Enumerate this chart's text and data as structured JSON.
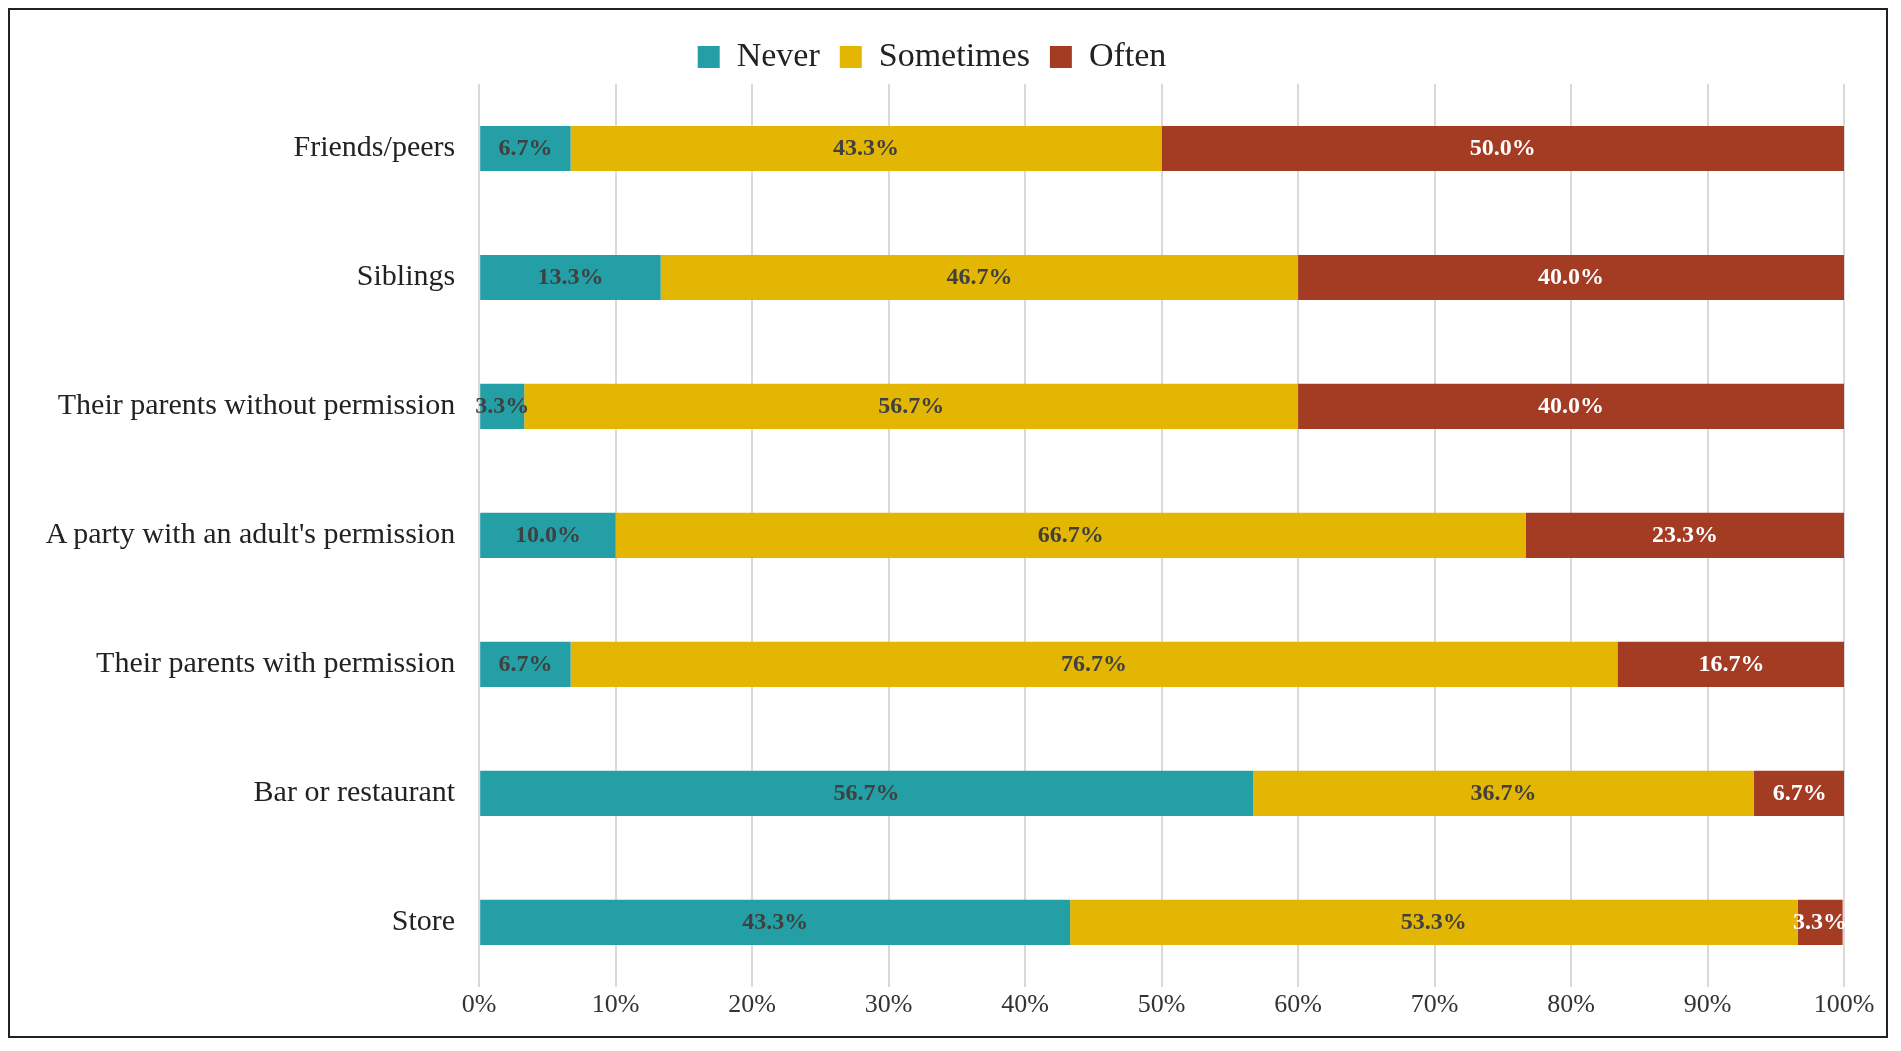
{
  "chart_data": {
    "type": "bar",
    "orientation": "horizontal",
    "stacked": true,
    "legend": "top",
    "grid": "x",
    "categories": [
      "Friends/peers",
      "Siblings",
      "Their parents without permission",
      "A party with an adult's permission",
      "Their parents with permission",
      "Bar or restaurant",
      "Store"
    ],
    "xlim": [
      0,
      100
    ],
    "xticks": [
      {
        "value": 0,
        "label": "0%"
      },
      {
        "value": 10,
        "label": "10%"
      },
      {
        "value": 20,
        "label": "20%"
      },
      {
        "value": 30,
        "label": "30%"
      },
      {
        "value": 40,
        "label": "40%"
      },
      {
        "value": 50,
        "label": "50%"
      },
      {
        "value": 60,
        "label": "60%"
      },
      {
        "value": 70,
        "label": "70%"
      },
      {
        "value": 80,
        "label": "80%"
      },
      {
        "value": 90,
        "label": "90%"
      },
      {
        "value": 100,
        "label": "100%"
      }
    ],
    "series": [
      {
        "name": "Never",
        "color": "#239fa5",
        "values": [
          6.7,
          13.3,
          3.3,
          10.0,
          6.7,
          56.7,
          43.3
        ],
        "value_labels": [
          "6.7%",
          "13.3%",
          "3.3%",
          "10.0%",
          "6.7%",
          "56.7%",
          "43.3%"
        ]
      },
      {
        "name": "Sometimes",
        "color": "#e2b602",
        "values": [
          43.3,
          46.7,
          56.7,
          66.7,
          76.7,
          36.7,
          53.3
        ],
        "value_labels": [
          "43.3%",
          "46.7%",
          "56.7%",
          "66.7%",
          "76.7%",
          "36.7%",
          "53.3%"
        ]
      },
      {
        "name": "Often",
        "color": "#a43c24",
        "values": [
          50.0,
          40.0,
          40.0,
          23.3,
          16.7,
          6.7,
          3.3
        ],
        "value_labels": [
          "50.0%",
          "40.0%",
          "40.0%",
          "23.3%",
          "16.7%",
          "6.7%",
          "3.3%"
        ]
      }
    ]
  }
}
